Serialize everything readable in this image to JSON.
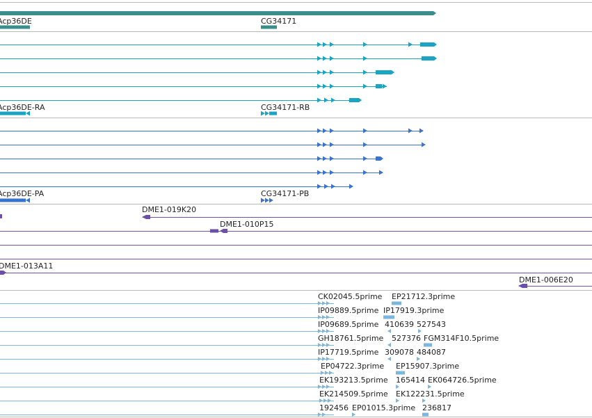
{
  "colors": {
    "gene": "#3a8f8c",
    "transcript": "#1aa3c2",
    "protein": "#3a72cf",
    "clone": "#6b4fa8",
    "est": "#7bb7dd",
    "separator": "#b8b8b8"
  },
  "tracks": {
    "genes": {
      "labels": [
        "Acp36DE",
        "CG34171"
      ]
    },
    "transcripts": {
      "labels": [
        "Acp36DE-RA",
        "CG34171-RB"
      ]
    },
    "proteins": {
      "labels": [
        "Acp36DE-PA",
        "CG34171-PB"
      ]
    },
    "clones": {
      "labels": [
        "DME1-019K20",
        "DME1-010P15",
        "DME1-013A11",
        "DME1-006E20"
      ]
    },
    "ests": {
      "labels": [
        "CK02045.5prime",
        "EP21712.3prime",
        "IP09889.5prime",
        "IP17919.3prime",
        "IP09689.5prime",
        "410639",
        "527543",
        "GH18761.5prime",
        "527376",
        "FGM314F10.5prime",
        "IP17719.5prime",
        "309078",
        "484087",
        "EP04722.3prime",
        "EP15907.3prime",
        "EK193213.5prime",
        "165414",
        "EK064726.5prime",
        "EK214509.5prime",
        "EK122231.5prime",
        "192456",
        "EP01015.3prime",
        "236817"
      ]
    }
  }
}
